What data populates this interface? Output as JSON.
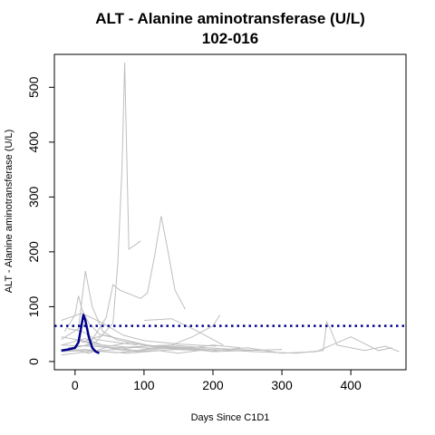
{
  "chart_data": {
    "type": "line",
    "title": "ALT - Alanine aminotransferase (U/L)",
    "subtitle": "102-016",
    "xlabel": "Days Since C1D1",
    "ylabel": "ALT - Alanine aminotransferase (U/L)",
    "xlim": [
      -30,
      480
    ],
    "ylim": [
      -15,
      560
    ],
    "x_ticks": [
      0,
      100,
      200,
      300,
      400
    ],
    "y_ticks": [
      0,
      100,
      200,
      300,
      400,
      500
    ],
    "reference_line": {
      "y": 65,
      "color": "#00008B",
      "style": "dotted"
    },
    "highlight_color": "#00008B",
    "background_color": "#BEBEBE",
    "series_background": [
      {
        "x": [
          -20,
          10,
          40,
          70,
          100,
          150,
          205
        ],
        "y": [
          75,
          88,
          70,
          48,
          38,
          32,
          28
        ]
      },
      {
        "x": [
          -20,
          5,
          15,
          25,
          40,
          60,
          90,
          130,
          180,
          210
        ],
        "y": [
          40,
          60,
          165,
          100,
          55,
          40,
          32,
          26,
          22,
          18
        ]
      },
      {
        "x": [
          -15,
          0,
          5,
          10,
          20,
          35,
          55
        ],
        "y": [
          55,
          85,
          120,
          95,
          70,
          50,
          45
        ]
      },
      {
        "x": [
          -20,
          10,
          30,
          55,
          62,
          68,
          72,
          78,
          90,
          95
        ],
        "y": [
          20,
          28,
          35,
          70,
          180,
          350,
          545,
          205,
          215,
          220
        ]
      },
      {
        "x": [
          -10,
          20,
          45,
          55,
          65,
          95,
          105,
          115,
          125,
          135,
          145,
          160
        ],
        "y": [
          25,
          30,
          80,
          140,
          130,
          115,
          125,
          190,
          265,
          200,
          130,
          95
        ]
      },
      {
        "x": [
          -20,
          20,
          60,
          100,
          140,
          170,
          200,
          210
        ],
        "y": [
          30,
          28,
          25,
          28,
          30,
          45,
          65,
          85
        ]
      },
      {
        "x": [
          120,
          160,
          200,
          260,
          320,
          360,
          365,
          370,
          380,
          420,
          450,
          470
        ],
        "y": [
          28,
          25,
          22,
          18,
          15,
          20,
          72,
          60,
          30,
          20,
          28,
          18
        ]
      },
      {
        "x": [
          200,
          250,
          300,
          350,
          400,
          440,
          460
        ],
        "y": [
          20,
          25,
          15,
          18,
          45,
          20,
          25
        ]
      },
      {
        "x": [
          -20,
          20,
          60,
          110,
          150,
          200,
          250,
          300
        ],
        "y": [
          18,
          20,
          16,
          22,
          25,
          18,
          20,
          22
        ]
      },
      {
        "x": [
          -20,
          15,
          50,
          90,
          130,
          170
        ],
        "y": [
          30,
          42,
          25,
          20,
          28,
          25
        ]
      },
      {
        "x": [
          -10,
          20,
          50,
          80,
          120,
          150,
          200,
          240
        ],
        "y": [
          25,
          15,
          28,
          35,
          25,
          22,
          30,
          25
        ]
      },
      {
        "x": [
          0,
          30,
          60,
          90,
          120,
          150,
          180
        ],
        "y": [
          40,
          30,
          22,
          18,
          20,
          15,
          20
        ]
      },
      {
        "x": [
          -20,
          20,
          60,
          100,
          140,
          180,
          230,
          280
        ],
        "y": [
          12,
          18,
          22,
          28,
          30,
          26,
          22,
          20
        ]
      },
      {
        "x": [
          10,
          40,
          70,
          105,
          140,
          175
        ],
        "y": [
          35,
          48,
          40,
          30,
          24,
          22
        ]
      },
      {
        "x": [
          -20,
          10,
          40,
          80,
          120
        ],
        "y": [
          45,
          38,
          30,
          26,
          24
        ]
      },
      {
        "x": [
          -15,
          15,
          45,
          75,
          105,
          145,
          185
        ],
        "y": [
          20,
          22,
          18,
          15,
          18,
          22,
          20
        ]
      },
      {
        "x": [
          100,
          140,
          170,
          200,
          215
        ],
        "y": [
          75,
          78,
          60,
          40,
          30
        ]
      },
      {
        "x": [
          -10,
          10,
          30,
          60,
          90
        ],
        "y": [
          60,
          55,
          40,
          35,
          30
        ]
      }
    ],
    "series_highlight": {
      "x": [
        -20,
        -10,
        0,
        5,
        12,
        15,
        20,
        25,
        30,
        35
      ],
      "y": [
        20,
        22,
        25,
        35,
        85,
        75,
        45,
        25,
        18,
        15
      ]
    }
  }
}
